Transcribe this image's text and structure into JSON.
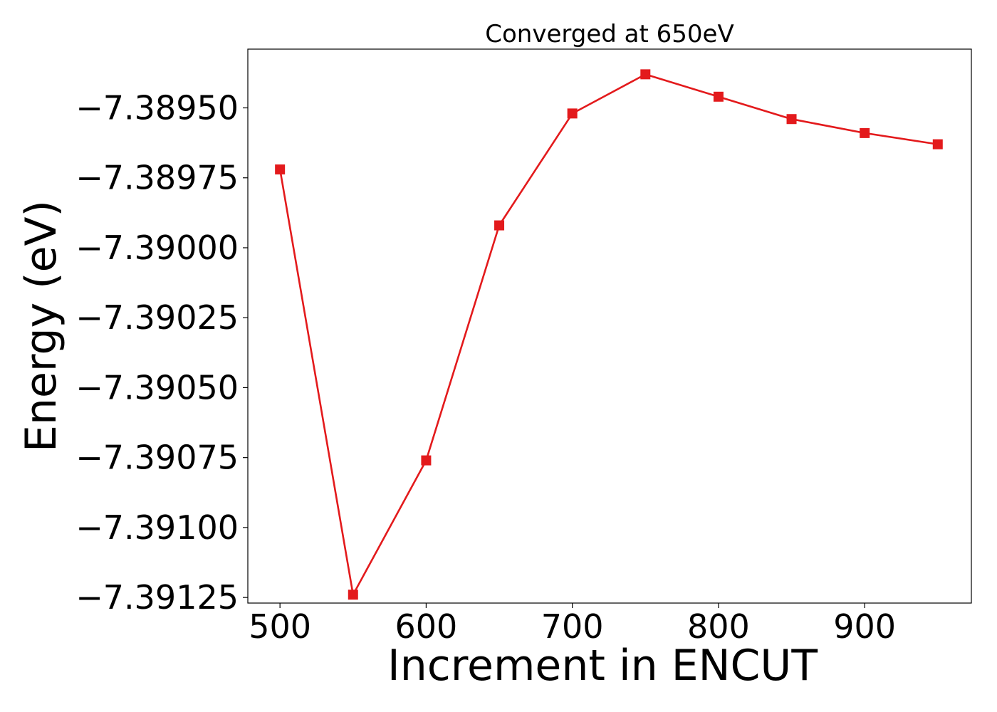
{
  "chart_data": {
    "type": "line",
    "title": "Converged at 650eV",
    "xlabel": "Increment in ENCUT",
    "ylabel": "Energy (eV)",
    "x": [
      500,
      550,
      600,
      650,
      700,
      750,
      800,
      850,
      900,
      950
    ],
    "series": [
      {
        "values": [
          -7.38972,
          -7.39124,
          -7.39076,
          -7.38992,
          -7.38952,
          -7.38938,
          -7.38946,
          -7.38954,
          -7.38959,
          -7.38963
        ],
        "color": "#e31a1c",
        "marker": "square"
      }
    ],
    "xlim": [
      478,
      973
    ],
    "ylim": [
      -7.39127,
      -7.38929
    ],
    "xticks": [
      500,
      600,
      700,
      800,
      900
    ],
    "xtick_labels": [
      "500",
      "600",
      "700",
      "800",
      "900"
    ],
    "yticks": [
      -7.3895,
      -7.38975,
      -7.39,
      -7.39025,
      -7.3905,
      -7.39075,
      -7.391,
      -7.39125
    ],
    "ytick_labels": [
      "−7.38950",
      "−7.38975",
      "−7.39000",
      "−7.39025",
      "−7.39050",
      "−7.39075",
      "−7.39100",
      "−7.39125"
    ],
    "grid": false,
    "legend": "none"
  }
}
